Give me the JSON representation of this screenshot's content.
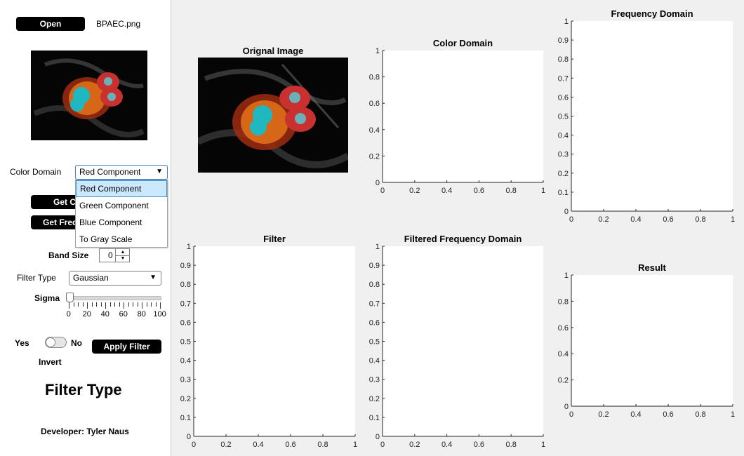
{
  "sidebar": {
    "open_button": "Open",
    "file_name": "BPAEC.png",
    "color_domain_label": "Color Domain",
    "color_domain_selected": "Red Component",
    "color_domain_options": [
      "Red Component",
      "Green Component",
      "Blue Component",
      "To Gray Scale"
    ],
    "get_color_button": "Get C",
    "get_freq_button": "Get Freq",
    "band_size_label": "Band Size",
    "band_size_value": "0",
    "filter_type_label": "Filter Type",
    "filter_type_value": "Gaussian",
    "sigma_label": "Sigma",
    "sigma_ticks": [
      "0",
      "20",
      "40",
      "60",
      "80",
      "100"
    ],
    "sigma_value": 0,
    "yes_label": "Yes",
    "no_label": "No",
    "invert_label": "Invert",
    "apply_button": "Apply Filter",
    "filter_type_heading": "Filter Type",
    "developer": "Developer: Tyler Naus"
  },
  "panels": {
    "original_title": "Orignal Image",
    "color_domain_title": "Color Domain",
    "frequency_domain_title": "Frequency Domain",
    "filter_title": "Filter",
    "filtered_frequency_title": "Filtered Frequency Domain",
    "result_title": "Result"
  },
  "chart_data": [
    {
      "type": "line",
      "title": "Color Domain",
      "series": [],
      "xlim": [
        0,
        1
      ],
      "ylim": [
        0,
        1
      ],
      "xticks": [
        "0",
        "0.2",
        "0.4",
        "0.6",
        "0.8",
        "1"
      ],
      "yticks": [
        "0",
        "0.2",
        "0.4",
        "0.6",
        "0.8",
        "1"
      ]
    },
    {
      "type": "line",
      "title": "Frequency Domain",
      "series": [],
      "xlim": [
        0,
        1
      ],
      "ylim": [
        0,
        1
      ],
      "xticks": [
        "0",
        "0.2",
        "0.4",
        "0.6",
        "0.8",
        "1"
      ],
      "yticks": [
        "0",
        "0.1",
        "0.2",
        "0.3",
        "0.4",
        "0.5",
        "0.6",
        "0.7",
        "0.8",
        "0.9",
        "1"
      ]
    },
    {
      "type": "line",
      "title": "Filter",
      "series": [],
      "xlim": [
        0,
        1
      ],
      "ylim": [
        0,
        1
      ],
      "xticks": [
        "0",
        "0.2",
        "0.4",
        "0.6",
        "0.8",
        "1"
      ],
      "yticks": [
        "0",
        "0.1",
        "0.2",
        "0.3",
        "0.4",
        "0.5",
        "0.6",
        "0.7",
        "0.8",
        "0.9",
        "1"
      ]
    },
    {
      "type": "line",
      "title": "Filtered Frequency Domain",
      "series": [],
      "xlim": [
        0,
        1
      ],
      "ylim": [
        0,
        1
      ],
      "xticks": [
        "0",
        "0.2",
        "0.4",
        "0.6",
        "0.8",
        "1"
      ],
      "yticks": [
        "0",
        "0.1",
        "0.2",
        "0.3",
        "0.4",
        "0.5",
        "0.6",
        "0.7",
        "0.8",
        "0.9",
        "1"
      ]
    },
    {
      "type": "line",
      "title": "Result",
      "series": [],
      "xlim": [
        0,
        1
      ],
      "ylim": [
        0,
        1
      ],
      "xticks": [
        "0",
        "0.2",
        "0.4",
        "0.6",
        "0.8",
        "1"
      ],
      "yticks": [
        "0",
        "0.2",
        "0.4",
        "0.6",
        "0.8",
        "1"
      ]
    }
  ]
}
